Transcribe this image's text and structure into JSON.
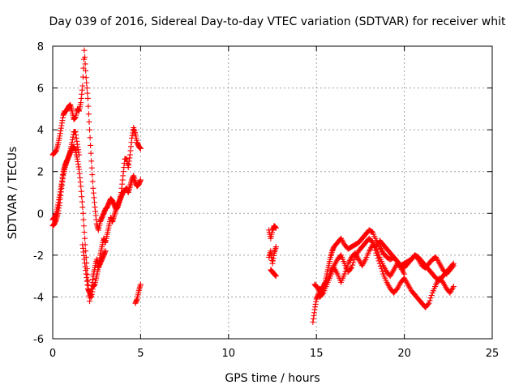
{
  "chart_data": {
    "type": "scatter",
    "title": "Day 039 of 2016, Sidereal Day-to-day VTEC variation (SDTVAR) for receiver whit",
    "xlabel": "GPS time / hours",
    "ylabel": "SDTVAR / TECUs",
    "xlim": [
      0,
      25
    ],
    "ylim": [
      -6,
      8
    ],
    "xticks": [
      0,
      5,
      10,
      15,
      20,
      25
    ],
    "yticks": [
      -6,
      -4,
      -2,
      0,
      2,
      4,
      6,
      8
    ],
    "grid": true,
    "marker": "+",
    "color": "#ff0000",
    "series": [
      {
        "name": "SDTVAR",
        "segments": [
          {
            "x": [
              0.0,
              0.1,
              0.2,
              0.3,
              0.4,
              0.5,
              0.6,
              0.7,
              0.8,
              0.9,
              1.0,
              1.1,
              1.2,
              1.3,
              1.4,
              1.5,
              1.6,
              1.7,
              1.8,
              1.9,
              2.0,
              2.1,
              2.2,
              2.3,
              2.4,
              2.5,
              2.6,
              2.7,
              2.8,
              2.9,
              3.0,
              3.1,
              3.2,
              3.3,
              3.4,
              3.5,
              3.6,
              3.7,
              3.8,
              3.9,
              4.0,
              4.1,
              4.2,
              4.3,
              4.4,
              4.5,
              4.6,
              4.7,
              4.8,
              4.9,
              5.0
            ],
            "y": [
              2.8,
              2.9,
              3.0,
              3.3,
              3.7,
              4.2,
              4.7,
              4.9,
              4.9,
              5.1,
              5.2,
              4.9,
              4.5,
              4.6,
              5.0,
              4.9,
              5.3,
              6.1,
              7.8,
              6.5,
              5.5,
              4.0,
              2.5,
              1.2,
              0.3,
              -0.5,
              -0.8,
              -0.4,
              -0.2,
              0.0,
              0.2,
              0.3,
              0.5,
              0.7,
              0.6,
              0.4,
              0.2,
              0.3,
              0.6,
              1.0,
              1.8,
              2.6,
              2.6,
              2.2,
              2.8,
              3.6,
              4.1,
              3.8,
              3.4,
              3.2,
              3.1
            ]
          },
          {
            "x": [
              0.0,
              0.1,
              0.2,
              0.3,
              0.4,
              0.5,
              0.6,
              0.7,
              0.8,
              0.9,
              1.0,
              1.1,
              1.2,
              1.3,
              1.4,
              1.5,
              1.6,
              1.7,
              1.8,
              1.9,
              2.0,
              2.1,
              2.2,
              2.3,
              2.4,
              2.5,
              2.6,
              2.7,
              2.8,
              2.9,
              3.0,
              3.1,
              3.2,
              3.3,
              3.4,
              3.5,
              3.6,
              3.7,
              3.8,
              3.9,
              4.0,
              4.1,
              4.2,
              4.3,
              4.4,
              4.5,
              4.6,
              4.7,
              4.8,
              4.9,
              5.0
            ],
            "y": [
              -0.3,
              -0.2,
              0.0,
              0.4,
              0.9,
              1.4,
              2.0,
              2.3,
              2.5,
              2.7,
              2.9,
              3.1,
              3.2,
              3.0,
              2.6,
              2.1,
              1.3,
              0.3,
              -0.9,
              -2.1,
              -3.2,
              -4.2,
              -3.6,
              -3.0,
              -2.6,
              -2.2,
              -2.5,
              -2.0,
              -1.6,
              -1.2,
              -1.4,
              -1.0,
              -0.6,
              -0.2,
              -0.4,
              -0.1,
              0.2,
              0.4,
              0.6,
              0.8,
              1.0,
              1.1,
              1.2,
              1.0,
              1.3,
              1.6,
              1.8,
              1.5,
              1.3,
              1.4,
              1.6
            ]
          },
          {
            "x": [
              0.0,
              0.1,
              0.2,
              0.3,
              0.4,
              0.5,
              0.6,
              0.7,
              0.8,
              0.9,
              1.0,
              1.1,
              1.2,
              1.3,
              1.4,
              1.5
            ],
            "y": [
              -0.6,
              -0.5,
              -0.3,
              0.0,
              0.5,
              1.2,
              1.8,
              2.2,
              2.5,
              2.7,
              3.0,
              3.4,
              3.9,
              3.9,
              3.3,
              2.8
            ]
          },
          {
            "x": [
              1.7,
              1.8,
              1.9,
              2.0,
              2.1,
              2.2,
              2.3,
              2.4,
              2.5,
              2.6,
              2.7,
              2.8,
              2.9,
              3.0
            ],
            "y": [
              -1.5,
              -2.2,
              -2.9,
              -3.6,
              -3.8,
              -4.0,
              -3.5,
              -3.4,
              -3.0,
              -2.6,
              -2.4,
              -2.2,
              -2.0,
              -1.8
            ]
          },
          {
            "x": [
              4.7,
              4.8,
              4.9,
              5.0
            ],
            "y": [
              -4.3,
              -4.1,
              -3.7,
              -3.4
            ]
          },
          {
            "x": [
              12.3,
              12.4,
              12.5,
              12.6,
              12.7
            ],
            "y": [
              -0.8,
              -1.2,
              -0.8,
              -0.6,
              -0.7
            ]
          },
          {
            "x": [
              12.3,
              12.4,
              12.5,
              12.6,
              12.7
            ],
            "y": [
              -2.1,
              -1.8,
              -2.4,
              -1.9,
              -1.6
            ]
          },
          {
            "x": [
              12.4,
              12.5,
              12.6,
              12.7
            ],
            "y": [
              -2.7,
              -2.8,
              -2.9,
              -3.0
            ]
          },
          {
            "x": [
              14.8,
              14.9,
              15.0,
              15.1,
              15.2,
              15.3,
              15.4,
              15.5,
              15.6,
              15.7,
              15.8,
              15.9,
              16.0,
              16.2,
              16.4,
              16.6,
              16.8,
              17.0,
              17.2,
              17.4,
              17.6,
              17.8,
              18.0,
              18.2,
              18.4,
              18.6,
              18.8,
              19.0,
              19.2,
              19.4,
              19.6,
              19.8,
              20.0,
              20.2,
              20.4,
              20.6,
              20.8,
              21.0,
              21.2,
              21.4,
              21.6,
              21.8,
              22.0,
              22.2,
              22.4,
              22.6,
              22.8
            ],
            "y": [
              -5.2,
              -4.6,
              -4.1,
              -3.9,
              -3.6,
              -3.9,
              -3.5,
              -3.3,
              -2.9,
              -2.5,
              -2.1,
              -1.8,
              -1.6,
              -1.4,
              -1.2,
              -1.5,
              -1.7,
              -1.6,
              -1.5,
              -1.4,
              -1.2,
              -1.0,
              -0.8,
              -0.9,
              -1.3,
              -1.6,
              -1.9,
              -2.1,
              -2.2,
              -2.1,
              -2.3,
              -2.5,
              -2.6,
              -2.4,
              -2.2,
              -2.0,
              -2.1,
              -2.3,
              -2.5,
              -2.7,
              -2.9,
              -3.1,
              -3.2,
              -3.0,
              -2.8,
              -2.6,
              -2.4
            ]
          },
          {
            "x": [
              14.9,
              15.0,
              15.2,
              15.4,
              15.6,
              15.8,
              16.0,
              16.2,
              16.4,
              16.6,
              16.8,
              17.0,
              17.2,
              17.4,
              17.6,
              17.8,
              18.0,
              18.2,
              18.4,
              18.6,
              18.8,
              19.0,
              19.2,
              19.4,
              19.6,
              19.8,
              20.0,
              20.2,
              20.4,
              20.6,
              20.8,
              21.0,
              21.2,
              21.4,
              21.6,
              21.8,
              22.0,
              22.2,
              22.4,
              22.6,
              22.8
            ],
            "y": [
              -3.4,
              -3.5,
              -3.7,
              -3.5,
              -3.2,
              -2.8,
              -2.5,
              -2.2,
              -2.0,
              -2.4,
              -2.8,
              -2.6,
              -2.1,
              -1.8,
              -1.6,
              -1.4,
              -1.2,
              -1.4,
              -1.9,
              -2.4,
              -2.9,
              -3.3,
              -3.6,
              -3.8,
              -3.6,
              -3.3,
              -3.1,
              -3.4,
              -3.7,
              -3.9,
              -4.1,
              -4.3,
              -4.5,
              -4.3,
              -3.8,
              -3.4,
              -3.1,
              -3.3,
              -3.6,
              -3.8,
              -3.5
            ]
          },
          {
            "x": [
              15.2,
              15.4,
              15.6,
              15.8,
              16.0,
              16.2,
              16.4,
              16.6,
              16.8,
              17.0,
              17.2,
              17.4,
              17.6,
              17.8,
              18.0,
              18.2,
              18.4,
              18.6,
              18.8,
              19.0,
              19.2,
              19.4,
              19.6,
              19.8,
              20.0
            ],
            "y": [
              -4.0,
              -3.8,
              -3.4,
              -3.0,
              -2.6,
              -2.9,
              -3.3,
              -2.9,
              -2.4,
              -2.1,
              -1.9,
              -2.2,
              -2.5,
              -2.2,
              -1.8,
              -1.5,
              -1.6,
              -2.1,
              -2.5,
              -2.8,
              -3.0,
              -2.7,
              -2.4,
              -2.6,
              -2.9
            ]
          },
          {
            "x": [
              18.6,
              18.8,
              19.0,
              19.2,
              19.4,
              19.6,
              19.8,
              20.0,
              20.2,
              20.4,
              20.6,
              20.8,
              21.0,
              21.2,
              21.4,
              21.6,
              21.8,
              22.0,
              22.2,
              22.4,
              22.6,
              22.8
            ],
            "y": [
              -1.3,
              -1.5,
              -1.7,
              -1.9,
              -2.1,
              -2.3,
              -2.5,
              -2.4,
              -2.3,
              -2.2,
              -2.0,
              -2.2,
              -2.5,
              -2.6,
              -2.4,
              -2.2,
              -2.1,
              -2.4,
              -2.7,
              -2.9,
              -2.7,
              -2.5
            ]
          }
        ]
      }
    ]
  }
}
